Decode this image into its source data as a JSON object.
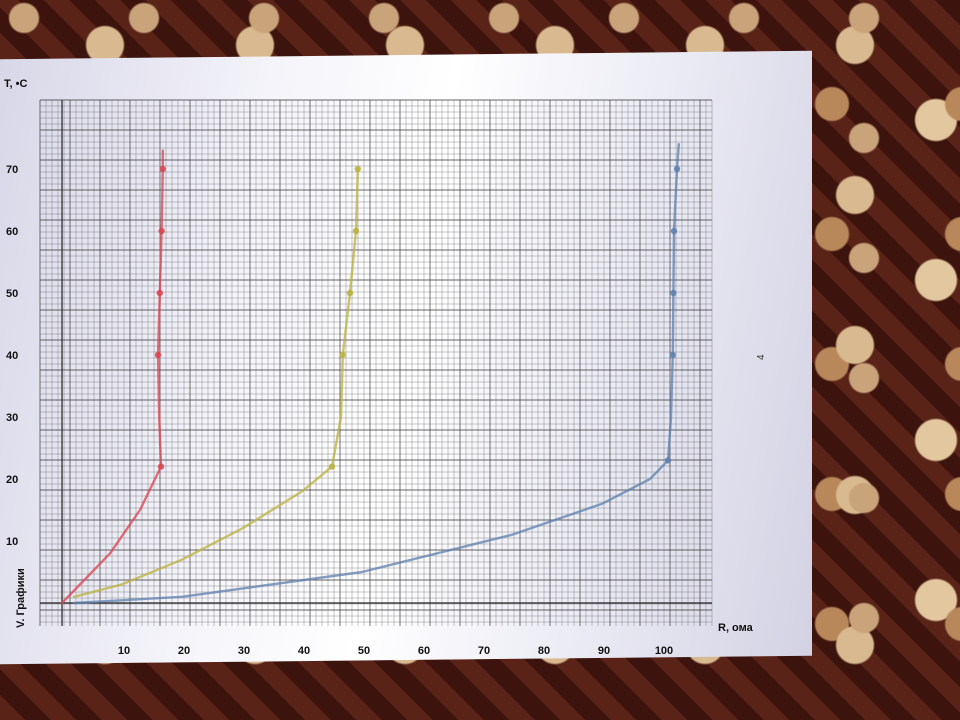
{
  "chart_data": {
    "type": "line",
    "title": "V. Графики",
    "xlabel": "R, ома",
    "ylabel": "T, •C",
    "xlim": [
      0,
      105
    ],
    "ylim": [
      0,
      75
    ],
    "x_ticks": [
      10,
      20,
      30,
      40,
      50,
      60,
      70,
      80,
      90,
      100
    ],
    "y_ticks": [
      10,
      20,
      30,
      40,
      50,
      60,
      70
    ],
    "grid": true,
    "series": [
      {
        "color": "#d9434f",
        "points": [
          [
            0,
            0
          ],
          [
            8,
            8
          ],
          [
            13,
            15
          ],
          [
            16.5,
            22
          ],
          [
            16.2,
            30
          ],
          [
            16,
            40
          ],
          [
            16.3,
            50
          ],
          [
            16.6,
            60
          ],
          [
            16.8,
            70
          ],
          [
            16.8,
            73
          ]
        ],
        "markers": [
          [
            16.5,
            22
          ],
          [
            16,
            40
          ],
          [
            16.3,
            50
          ],
          [
            16.6,
            60
          ],
          [
            16.8,
            70
          ]
        ]
      },
      {
        "color": "#b9b23c",
        "points": [
          [
            2,
            1
          ],
          [
            10,
            3
          ],
          [
            20,
            7
          ],
          [
            30,
            12
          ],
          [
            40,
            18
          ],
          [
            45,
            22
          ],
          [
            46.5,
            30
          ],
          [
            46.8,
            40
          ],
          [
            48,
            50
          ],
          [
            49,
            60
          ],
          [
            49.3,
            70
          ]
        ],
        "markers": [
          [
            45,
            22
          ],
          [
            46.8,
            40
          ],
          [
            48,
            50
          ],
          [
            49,
            60
          ],
          [
            49.3,
            70
          ]
        ]
      },
      {
        "color": "#5e7fae",
        "points": [
          [
            2,
            0
          ],
          [
            20,
            1
          ],
          [
            50,
            5
          ],
          [
            75,
            11
          ],
          [
            90,
            16
          ],
          [
            98,
            20
          ],
          [
            101,
            23
          ],
          [
            101.5,
            30
          ],
          [
            101.8,
            40
          ],
          [
            101.9,
            50
          ],
          [
            102,
            60
          ],
          [
            102.5,
            70
          ],
          [
            102.8,
            74
          ]
        ],
        "markers": [
          [
            101,
            23
          ],
          [
            101.8,
            40
          ],
          [
            101.9,
            50
          ],
          [
            102,
            60
          ],
          [
            102.5,
            70
          ]
        ]
      }
    ],
    "annotations": [
      "4"
    ]
  }
}
